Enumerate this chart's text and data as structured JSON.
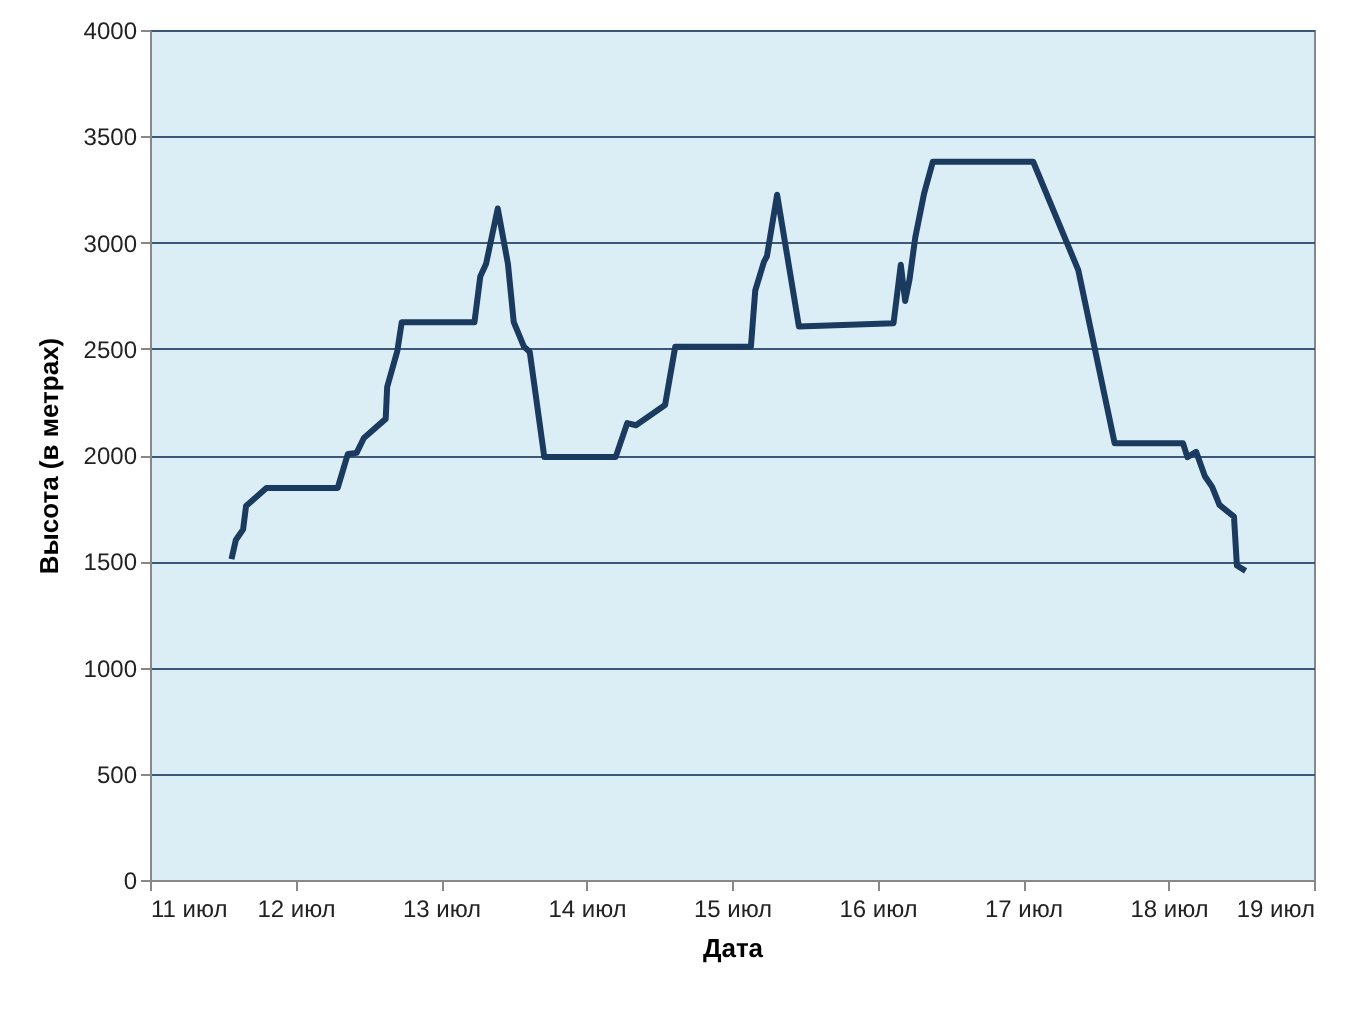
{
  "chart_data": {
    "type": "line",
    "xlabel": "Дата",
    "ylabel": "Высота (в метрах)",
    "x": [
      11.56,
      11.59,
      11.64,
      11.66,
      11.8,
      12.29,
      12.36,
      12.42,
      12.47,
      12.62,
      12.63,
      12.7,
      12.73,
      13.23,
      13.27,
      13.31,
      13.39,
      13.46,
      13.5,
      13.57,
      13.61,
      13.71,
      14.2,
      14.28,
      14.34,
      14.54,
      14.61,
      15.13,
      15.16,
      15.22,
      15.24,
      15.31,
      15.46,
      16.11,
      16.16,
      16.19,
      16.22,
      16.26,
      16.32,
      16.38,
      17.07,
      17.38,
      17.63,
      18.1,
      18.13,
      18.19,
      18.25,
      18.3,
      18.35,
      18.45,
      18.47,
      18.53
    ],
    "series": [
      {
        "color": "#1b3a5f",
        "values": [
          1510,
          1600,
          1650,
          1760,
          1845,
          1845,
          2005,
          2010,
          2080,
          2170,
          2320,
          2490,
          2625,
          2625,
          2840,
          2900,
          3160,
          2900,
          2625,
          2510,
          2485,
          1990,
          1990,
          2150,
          2140,
          2235,
          2510,
          2510,
          2775,
          2910,
          2935,
          3225,
          2605,
          2620,
          2895,
          2725,
          2825,
          3025,
          3230,
          3380,
          3380,
          2870,
          2055,
          2055,
          1990,
          2015,
          1900,
          1850,
          1765,
          1710,
          1480,
          1455
        ]
      }
    ],
    "xlim": [
      11,
      19
    ],
    "xticks": [
      {
        "value": 11,
        "label": "11 июл"
      },
      {
        "value": 12,
        "label": "12 июл"
      },
      {
        "value": 13,
        "label": "13 июл"
      },
      {
        "value": 14,
        "label": "14 июл"
      },
      {
        "value": 15,
        "label": "15 июл"
      },
      {
        "value": 16,
        "label": "16 июл"
      },
      {
        "value": 17,
        "label": "17 июл"
      },
      {
        "value": 18,
        "label": "18 июл"
      },
      {
        "value": 19,
        "label": "19 июл"
      }
    ],
    "ylim": [
      0,
      4000
    ],
    "yticks": [
      0,
      500,
      1000,
      1500,
      2000,
      2500,
      3000,
      3500,
      4000
    ],
    "grid": "y",
    "marker": "none",
    "line_style": "solid"
  }
}
